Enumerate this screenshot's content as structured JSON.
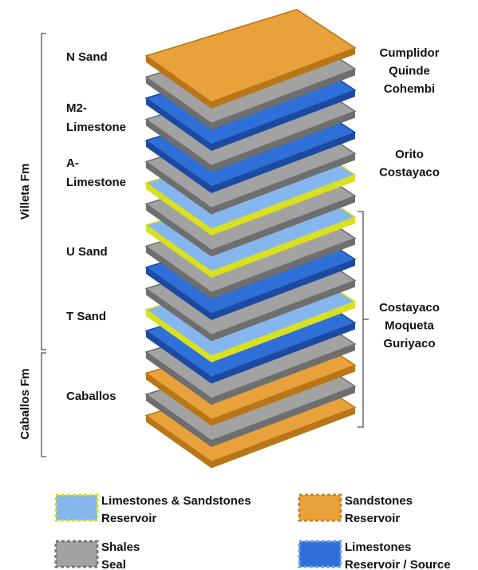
{
  "formations": [
    {
      "label": "Villeta Fm"
    },
    {
      "label": "Caballos Fm"
    }
  ],
  "units": [
    {
      "lines": [
        "N Sand"
      ]
    },
    {
      "lines": [
        "M2-",
        "Limestone"
      ]
    },
    {
      "lines": [
        "A-",
        "Limestone"
      ]
    },
    {
      "lines": [
        "U Sand"
      ]
    },
    {
      "lines": [
        "T Sand"
      ]
    },
    {
      "lines": [
        "Caballos"
      ]
    }
  ],
  "fields": [
    {
      "lines": [
        "Cumplidor",
        "Quinde",
        "Cohembi"
      ]
    },
    {
      "lines": [
        "Orito",
        "Costayaco"
      ]
    },
    {
      "lines": [
        "Costayaco",
        "Moqueta",
        "Guriyaco"
      ]
    }
  ],
  "legend": [
    {
      "lines": [
        "Limestones & Sandstones",
        "Reservoir"
      ]
    },
    {
      "lines": [
        "Sandstones",
        "Reservoir"
      ]
    },
    {
      "lines": [
        "Shales",
        "Seal"
      ]
    },
    {
      "lines": [
        "Limestones",
        "Reservoir / Source"
      ]
    }
  ]
}
